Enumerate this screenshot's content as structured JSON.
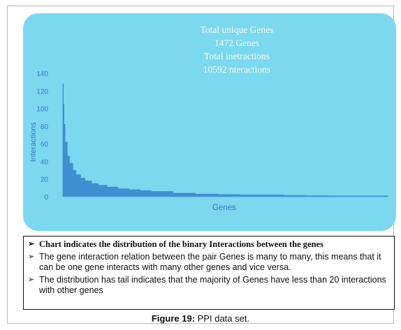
{
  "chart_data": {
    "type": "bar",
    "annotation_lines": [
      "Total unique Genes",
      "1472 Genes",
      "Total inetractions",
      "10592 nteractions"
    ],
    "xlabel": "Genes",
    "ylabel": "Interactions",
    "yticks": [
      0,
      20,
      40,
      60,
      80,
      100,
      120,
      140
    ],
    "ylim": [
      0,
      140
    ],
    "xlim": [
      0,
      1472
    ],
    "grid": false,
    "series": [
      {
        "color": "#3f8fd2",
        "x": [
          0,
          2,
          5,
          10,
          20,
          30,
          45,
          60,
          80,
          100,
          130,
          160,
          200,
          250,
          300,
          350,
          400,
          500,
          600,
          700,
          800,
          900,
          1000,
          1100,
          1200,
          1300,
          1400,
          1472
        ],
        "values": [
          128,
          105,
          82,
          62,
          46,
          38,
          30,
          25,
          21,
          18,
          15,
          13,
          11,
          9,
          8,
          7,
          6,
          4,
          3,
          2.5,
          2,
          2,
          1.5,
          1.2,
          1,
          1,
          1,
          1
        ]
      }
    ]
  },
  "notes": [
    "Chart indicates the distribution of the binary Interactions between the genes",
    "The gene interaction relation between the pair Genes is many to many, this means that it can be one gene interacts with many other genes and vice versa.",
    "The distribution has tail indicates that the majority of Genes have less than 20 interactions with other genes"
  ],
  "bullet_marker": "➢",
  "caption": {
    "label": "Figure 19:",
    "text": "PPI data set."
  }
}
